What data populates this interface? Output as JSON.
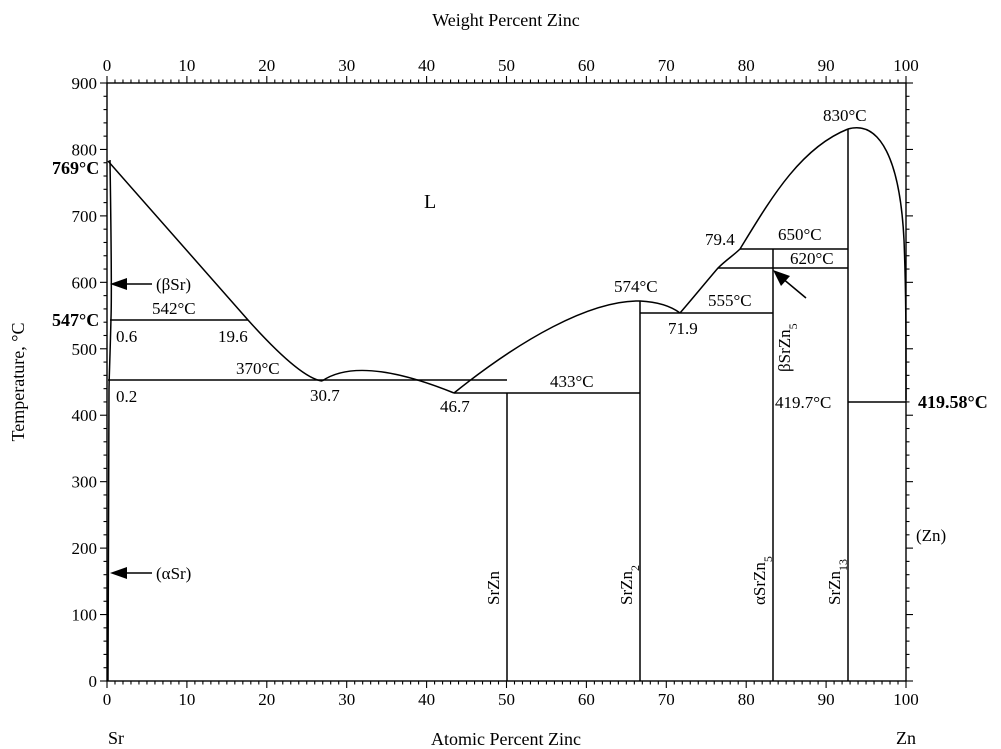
{
  "diagram": {
    "top_axis_title": "Weight Percent Zinc",
    "bottom_axis_title": "Atomic Percent Zinc",
    "y_axis_title": "Temperature, °C",
    "left_element": "Sr",
    "right_element": "Zn",
    "y_ticks": [
      "0",
      "100",
      "200",
      "300",
      "400",
      "500",
      "600",
      "700",
      "800",
      "900"
    ],
    "bottom_ticks": [
      "0",
      "10",
      "20",
      "30",
      "40",
      "50",
      "60",
      "70",
      "80",
      "90",
      "100"
    ],
    "top_ticks": [
      "0",
      "10",
      "20",
      "30",
      "40",
      "50",
      "60",
      "70",
      "80",
      "90",
      "100"
    ],
    "bold_temps": {
      "sr_melt": "769°C",
      "sr_transform": "547°C",
      "zn_melt": "419.58°C"
    },
    "phase_labels": {
      "liquid": "L",
      "beta_sr": "(βSr)",
      "alpha_sr": "(αSr)",
      "zn": "(Zn)"
    },
    "compounds": {
      "srzn": {
        "base": "SrZn",
        "sub": ""
      },
      "srzn2": {
        "base": "SrZn",
        "sub": "2"
      },
      "alpha_srzn5": {
        "base": "αSrZn",
        "sub": "5"
      },
      "srzn13": {
        "base": "SrZn",
        "sub": "13"
      },
      "beta_srzn5": {
        "base": "βSrZn",
        "sub": "5"
      }
    },
    "annotations": {
      "t542": "542°C",
      "c06": "0.6",
      "c196": "19.6",
      "t370": "370°C",
      "c02": "0.2",
      "c307": "30.7",
      "c467": "46.7",
      "t433": "433°C",
      "t574": "574°C",
      "t555": "555°C",
      "c719": "71.9",
      "c794": "79.4",
      "t650": "650°C",
      "t620": "620°C",
      "t830": "830°C",
      "t4197": "419.7°C"
    }
  },
  "chart_data": {
    "type": "phase-diagram",
    "x_axis": {
      "label": "Atomic Percent Zinc",
      "range": [
        0,
        100
      ]
    },
    "secondary_x_axis": {
      "label": "Weight Percent Zinc",
      "range": [
        0,
        100
      ]
    },
    "y_axis": {
      "label": "Temperature, °C",
      "range": [
        0,
        900
      ]
    },
    "liquidus": [
      {
        "segment": "Sr-rich",
        "points": [
          [
            0,
            769
          ],
          [
            14.5,
            542
          ],
          [
            24.5,
            370
          ]
        ]
      },
      {
        "segment": "to SrZn",
        "points": [
          [
            24.5,
            370
          ],
          [
            38,
            433
          ]
        ]
      },
      {
        "segment": "SrZn2 dome",
        "points": [
          [
            38,
            433
          ],
          [
            59.7,
            574
          ],
          [
            64.8,
            555
          ]
        ]
      },
      {
        "segment": "to maximum",
        "points": [
          [
            64.8,
            555
          ],
          [
            74.4,
            650
          ],
          [
            90.5,
            830
          ]
        ]
      },
      {
        "segment": "Zn side",
        "points": [
          [
            90.5,
            830
          ],
          [
            100,
            419.58
          ]
        ]
      }
    ],
    "invariants": [
      {
        "temp": 542,
        "from": 0.6,
        "to": 19.6
      },
      {
        "temp": 370,
        "from": 0.2,
        "to": 30.7
      },
      {
        "temp": 433,
        "from": 46.7,
        "to": 59.7
      },
      {
        "temp": 555,
        "from": 71.9,
        "to": 78.8
      },
      {
        "temp": 650,
        "from": 79.4,
        "to": 90.5
      },
      {
        "temp": 620,
        "from": 78.8,
        "to": 90.5
      },
      {
        "temp": 419.7,
        "from": 90.5,
        "to": 100
      }
    ],
    "compounds": [
      {
        "name": "SrZn",
        "at_pct_zn": 41.0,
        "max_temp": 433
      },
      {
        "name": "SrZn2",
        "at_pct_zn": 59.7,
        "max_temp": 574
      },
      {
        "name": "αSrZn5",
        "at_pct_zn": 78.8,
        "max_temp": 620
      },
      {
        "name": "βSrZn5",
        "at_pct_zn": 78.8,
        "range": [
          620,
          650
        ]
      },
      {
        "name": "SrZn13",
        "at_pct_zn": 90.5,
        "max_temp": 830
      }
    ],
    "pure_elements": [
      {
        "name": "Sr",
        "melting": 769,
        "transformation": 547
      },
      {
        "name": "Zn",
        "melting": 419.58
      }
    ]
  }
}
